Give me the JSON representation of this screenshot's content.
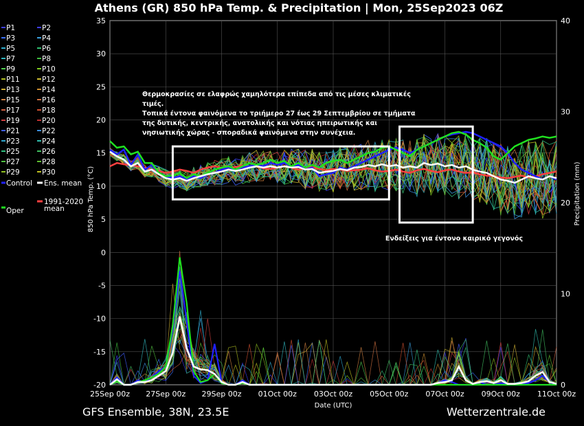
{
  "chart_data": {
    "type": "line",
    "title": "Athens  (GR)  850 hPa Temp. & Precipitation | Mon, 25Sep2023 06Z",
    "xlabel": "Date (UTC)",
    "ylabel": "850 hPa Temp. (°C)",
    "y2label": "Precipitation (mm)",
    "ylim": [
      -20,
      35
    ],
    "y2lim": [
      0,
      40
    ],
    "xlim": [
      0,
      384
    ],
    "x_ticks": [
      {
        "hour": 0,
        "label": "25Sep 00z"
      },
      {
        "hour": 48,
        "label": "27Sep 00z"
      },
      {
        "hour": 96,
        "label": "29Sep 00z"
      },
      {
        "hour": 144,
        "label": "01Oct 00z"
      },
      {
        "hour": 192,
        "label": "03Oct 00z"
      },
      {
        "hour": 240,
        "label": "05Oct 00z"
      },
      {
        "hour": 288,
        "label": "07Oct 00z"
      },
      {
        "hour": 336,
        "label": "09Oct 00z"
      },
      {
        "hour": 384,
        "label": "11Oct 00z"
      }
    ],
    "y_ticks": [
      35,
      30,
      25,
      20,
      15,
      10,
      5,
      0,
      -5,
      -10,
      -15,
      -20
    ],
    "y2_ticks": [
      40,
      30,
      20,
      10,
      0
    ],
    "grid": true,
    "legend_position": "left",
    "members": [
      {
        "name": "P1",
        "color": "#4040ff"
      },
      {
        "name": "P2",
        "color": "#4040ff"
      },
      {
        "name": "P3",
        "color": "#3a70ff"
      },
      {
        "name": "P4",
        "color": "#3aa0e0"
      },
      {
        "name": "P5",
        "color": "#30b0d0"
      },
      {
        "name": "P6",
        "color": "#30c070"
      },
      {
        "name": "P7",
        "color": "#30b8c0"
      },
      {
        "name": "P8",
        "color": "#40c040"
      },
      {
        "name": "P9",
        "color": "#50d050"
      },
      {
        "name": "P10",
        "color": "#80d020"
      },
      {
        "name": "P11",
        "color": "#b0c020"
      },
      {
        "name": "P12",
        "color": "#d0c030"
      },
      {
        "name": "P13",
        "color": "#d0b030"
      },
      {
        "name": "P14",
        "color": "#d09030"
      },
      {
        "name": "P15",
        "color": "#d08040"
      },
      {
        "name": "P16",
        "color": "#d07040"
      },
      {
        "name": "P17",
        "color": "#d06040"
      },
      {
        "name": "P18",
        "color": "#d05030"
      },
      {
        "name": "P19",
        "color": "#d04040"
      },
      {
        "name": "P20",
        "color": "#c03030"
      },
      {
        "name": "P21",
        "color": "#4060ff"
      },
      {
        "name": "P22",
        "color": "#3a90e0"
      },
      {
        "name": "P23",
        "color": "#30a8d0"
      },
      {
        "name": "P24",
        "color": "#30c0b0"
      },
      {
        "name": "P25",
        "color": "#30c080"
      },
      {
        "name": "P26",
        "color": "#40c060"
      },
      {
        "name": "P27",
        "color": "#50c040"
      },
      {
        "name": "P28",
        "color": "#60c030"
      },
      {
        "name": "P29",
        "color": "#90c020"
      },
      {
        "name": "P30",
        "color": "#c0c020"
      }
    ],
    "temperature": {
      "hours": [
        0,
        6,
        12,
        18,
        24,
        30,
        36,
        42,
        48,
        54,
        60,
        66,
        72,
        78,
        84,
        90,
        96,
        102,
        108,
        114,
        120,
        126,
        132,
        138,
        144,
        150,
        156,
        162,
        168,
        174,
        180,
        186,
        192,
        198,
        204,
        210,
        216,
        222,
        228,
        234,
        240,
        246,
        252,
        258,
        264,
        270,
        276,
        282,
        288,
        294,
        300,
        306,
        312,
        318,
        324,
        330,
        336,
        342,
        348,
        354,
        360,
        366,
        372,
        378,
        384
      ],
      "control": [
        15.5,
        14.8,
        15.5,
        13.2,
        14.8,
        12.5,
        13.2,
        12.0,
        11.5,
        11.2,
        11.5,
        11.0,
        11.5,
        11.2,
        11.8,
        12.0,
        12.5,
        12.8,
        12.5,
        12.8,
        13.0,
        13.2,
        13.0,
        13.5,
        13.2,
        13.5,
        13.0,
        13.2,
        12.5,
        12.8,
        11.5,
        11.8,
        12.0,
        12.8,
        12.5,
        13.0,
        13.5,
        14.0,
        14.5,
        15.0,
        15.5,
        15.8,
        15.5,
        15.0,
        15.5,
        16.0,
        16.5,
        17.0,
        17.5,
        17.8,
        18.0,
        18.2,
        18.0,
        17.5,
        17.0,
        16.5,
        16.0,
        15.0,
        13.5,
        12.5,
        12.0,
        11.5,
        11.0,
        11.5,
        11.0
      ],
      "ens_mean": [
        15.2,
        14.5,
        14.0,
        13.0,
        13.5,
        12.2,
        12.5,
        11.8,
        11.2,
        11.0,
        11.2,
        10.8,
        11.2,
        11.5,
        11.8,
        12.0,
        12.2,
        12.5,
        12.3,
        12.5,
        12.8,
        13.0,
        12.8,
        13.0,
        12.8,
        13.0,
        12.8,
        12.9,
        12.5,
        12.6,
        12.0,
        12.2,
        12.3,
        12.6,
        12.4,
        12.8,
        12.9,
        13.2,
        13.0,
        13.3,
        13.0,
        13.2,
        12.8,
        13.0,
        12.8,
        13.5,
        13.2,
        13.4,
        13.0,
        13.2,
        12.8,
        13.0,
        12.5,
        12.2,
        12.0,
        11.5,
        11.0,
        10.8,
        10.5,
        11.0,
        11.5,
        11.2,
        11.0,
        11.5,
        11.2
      ],
      "clim_mean": [
        13.0,
        13.5,
        13.3,
        13.2,
        13.0,
        12.8,
        12.5,
        12.3,
        12.0,
        12.2,
        12.5,
        12.3,
        12.0,
        12.5,
        12.8,
        13.0,
        12.8,
        12.7,
        12.9,
        13.1,
        12.8,
        13.0,
        12.7,
        12.6,
        12.8,
        13.0,
        12.8,
        12.5,
        12.7,
        12.9,
        12.6,
        12.4,
        12.6,
        12.5,
        12.3,
        12.4,
        12.5,
        12.7,
        12.4,
        12.2,
        12.3,
        12.5,
        12.2,
        12.0,
        12.4,
        12.6,
        12.3,
        12.1,
        12.4,
        12.5,
        12.2,
        12.0,
        12.1,
        11.8,
        11.6,
        11.5,
        11.3,
        11.2,
        11.4,
        11.6,
        11.3,
        11.5,
        11.8,
        12.0,
        12.2
      ],
      "oper": [
        16.8,
        15.8,
        16.0,
        14.8,
        15.2,
        13.5,
        13.5,
        12.0,
        11.5,
        11.6,
        12.0,
        11.2,
        11.8,
        11.5,
        12.0,
        12.5,
        12.8,
        13.0,
        12.5,
        13.0,
        13.5,
        13.2,
        13.5,
        14.0,
        13.5,
        13.8,
        13.0,
        13.5,
        12.8,
        13.2,
        12.8,
        13.5,
        13.8,
        14.0,
        13.5,
        14.0,
        14.5,
        15.0,
        15.2,
        15.8,
        16.0,
        15.5,
        15.0,
        14.5,
        15.5,
        16.0,
        16.5,
        17.0,
        17.5,
        18.0,
        18.2,
        17.8,
        17.0,
        16.5,
        15.8,
        14.5,
        14.0,
        15.0,
        16.0,
        16.5,
        17.0,
        17.2,
        17.5,
        17.3,
        17.5
      ]
    },
    "precipitation": {
      "hours": [
        0,
        6,
        12,
        18,
        24,
        30,
        36,
        42,
        48,
        54,
        60,
        66,
        72,
        78,
        84,
        90,
        96,
        102,
        108,
        114,
        120,
        126,
        132,
        138,
        144,
        150,
        156,
        162,
        168,
        174,
        180,
        186,
        192,
        198,
        204,
        210,
        216,
        222,
        228,
        234,
        240,
        246,
        252,
        258,
        264,
        270,
        276,
        282,
        288,
        294,
        300,
        306,
        312,
        318,
        324,
        330,
        336,
        342,
        348,
        354,
        360,
        366,
        372,
        378,
        384
      ],
      "control": [
        0,
        0.8,
        0,
        0,
        0.5,
        0.3,
        0.8,
        1.5,
        2.0,
        6.0,
        12.5,
        7.0,
        1.0,
        0.2,
        0.5,
        4.5,
        0.3,
        0,
        0,
        0.5,
        0,
        0,
        0,
        0,
        0,
        0,
        0,
        0,
        0,
        0,
        0,
        0,
        0,
        0,
        0,
        0,
        0,
        0,
        0,
        0,
        0,
        0,
        0,
        0,
        0,
        0,
        0,
        0.2,
        0.5,
        0.3,
        0,
        0,
        0,
        0.3,
        0,
        0,
        0.2,
        0,
        0,
        0,
        0.2,
        0.5,
        1.0,
        0.3,
        0
      ],
      "ens_mean": [
        0,
        0.6,
        0,
        0,
        0.3,
        0.3,
        0.5,
        1.0,
        1.5,
        3.5,
        7.5,
        4.0,
        2.0,
        1.7,
        1.6,
        1.2,
        0.3,
        0,
        0,
        0.3,
        0,
        0,
        0,
        0,
        0,
        0,
        0,
        0,
        0,
        0,
        0,
        0,
        0,
        0,
        0,
        0,
        0,
        0,
        0,
        0,
        0,
        0,
        0,
        0,
        0,
        0,
        0,
        0.2,
        0.3,
        0.5,
        2.0,
        0.5,
        0.1,
        0.3,
        0.4,
        0.2,
        0.5,
        0.1,
        0.1,
        0.2,
        0.4,
        1.0,
        1.4,
        0.3,
        0.1
      ],
      "oper": [
        0,
        0.4,
        0,
        0,
        0.3,
        0.5,
        0.8,
        1.2,
        2.0,
        6.5,
        14.0,
        9.0,
        1.5,
        0.3,
        0.5,
        1.2,
        0.2,
        0,
        0,
        0.2,
        0,
        0,
        0,
        0,
        0,
        0,
        0,
        0,
        0,
        0,
        0,
        0,
        0,
        0,
        0,
        0,
        0,
        0,
        0,
        0,
        0,
        0,
        0,
        0,
        0,
        0,
        0,
        0,
        0,
        0,
        0,
        0,
        0,
        0,
        0,
        0,
        0,
        0,
        0,
        0,
        0,
        0,
        0,
        0,
        0
      ]
    },
    "legend": [
      [
        "P1",
        "P2"
      ],
      [
        "P3",
        "P4"
      ],
      [
        "P5",
        "P6"
      ],
      [
        "P7",
        "P8"
      ],
      [
        "P9",
        "P10"
      ],
      [
        "P11",
        "P12"
      ],
      [
        "P13",
        "P14"
      ],
      [
        "P15",
        "P16"
      ],
      [
        "P17",
        "P18"
      ],
      [
        "P19",
        "P20"
      ],
      [
        "P21",
        "P22"
      ],
      [
        "P23",
        "P24"
      ],
      [
        "P25",
        "P26"
      ],
      [
        "P27",
        "P28"
      ],
      [
        "P29",
        "P30"
      ]
    ],
    "legend_specials": {
      "control": {
        "label": "Control",
        "color": "#2020ff"
      },
      "ens_mean": {
        "label": "Ens. mean",
        "color": "#ffffff"
      },
      "clim_line1": "1991-2020",
      "clim_line2": "mean",
      "clim_color": "#ff4040",
      "oper": {
        "label": "Oper",
        "color": "#20e020"
      }
    },
    "annotations": {
      "text_lines": [
        "Θερμοκρασίες σε ελαφρώς χαμηλότερα επίπεδα από τις μέσες κλιματικές",
        "τιμές.",
        "Τοπικά έντονα φαινόμενα το τριήμερο 27 έως 29 Σεπτεμβρίου σε τμήματα",
        "της δυτικής, κεντρικής, ανατολικής και νότιας ηπειρωτικής και",
        "νησιωτικής χώρας - σποραδικά φαινόμενα στην συνέχεια."
      ],
      "box2_label": "Ενδείξεις για έντονο καιρικό γεγονός",
      "box1_range": {
        "x": [
          54,
          240
        ],
        "y": [
          8,
          16
        ]
      },
      "box2_range": {
        "x": [
          249,
          312
        ],
        "y": [
          4.5,
          19
        ]
      }
    }
  },
  "footer": {
    "left": "GFS Ensemble, 38N, 23.5E",
    "right": "Wetterzentrale.de"
  }
}
